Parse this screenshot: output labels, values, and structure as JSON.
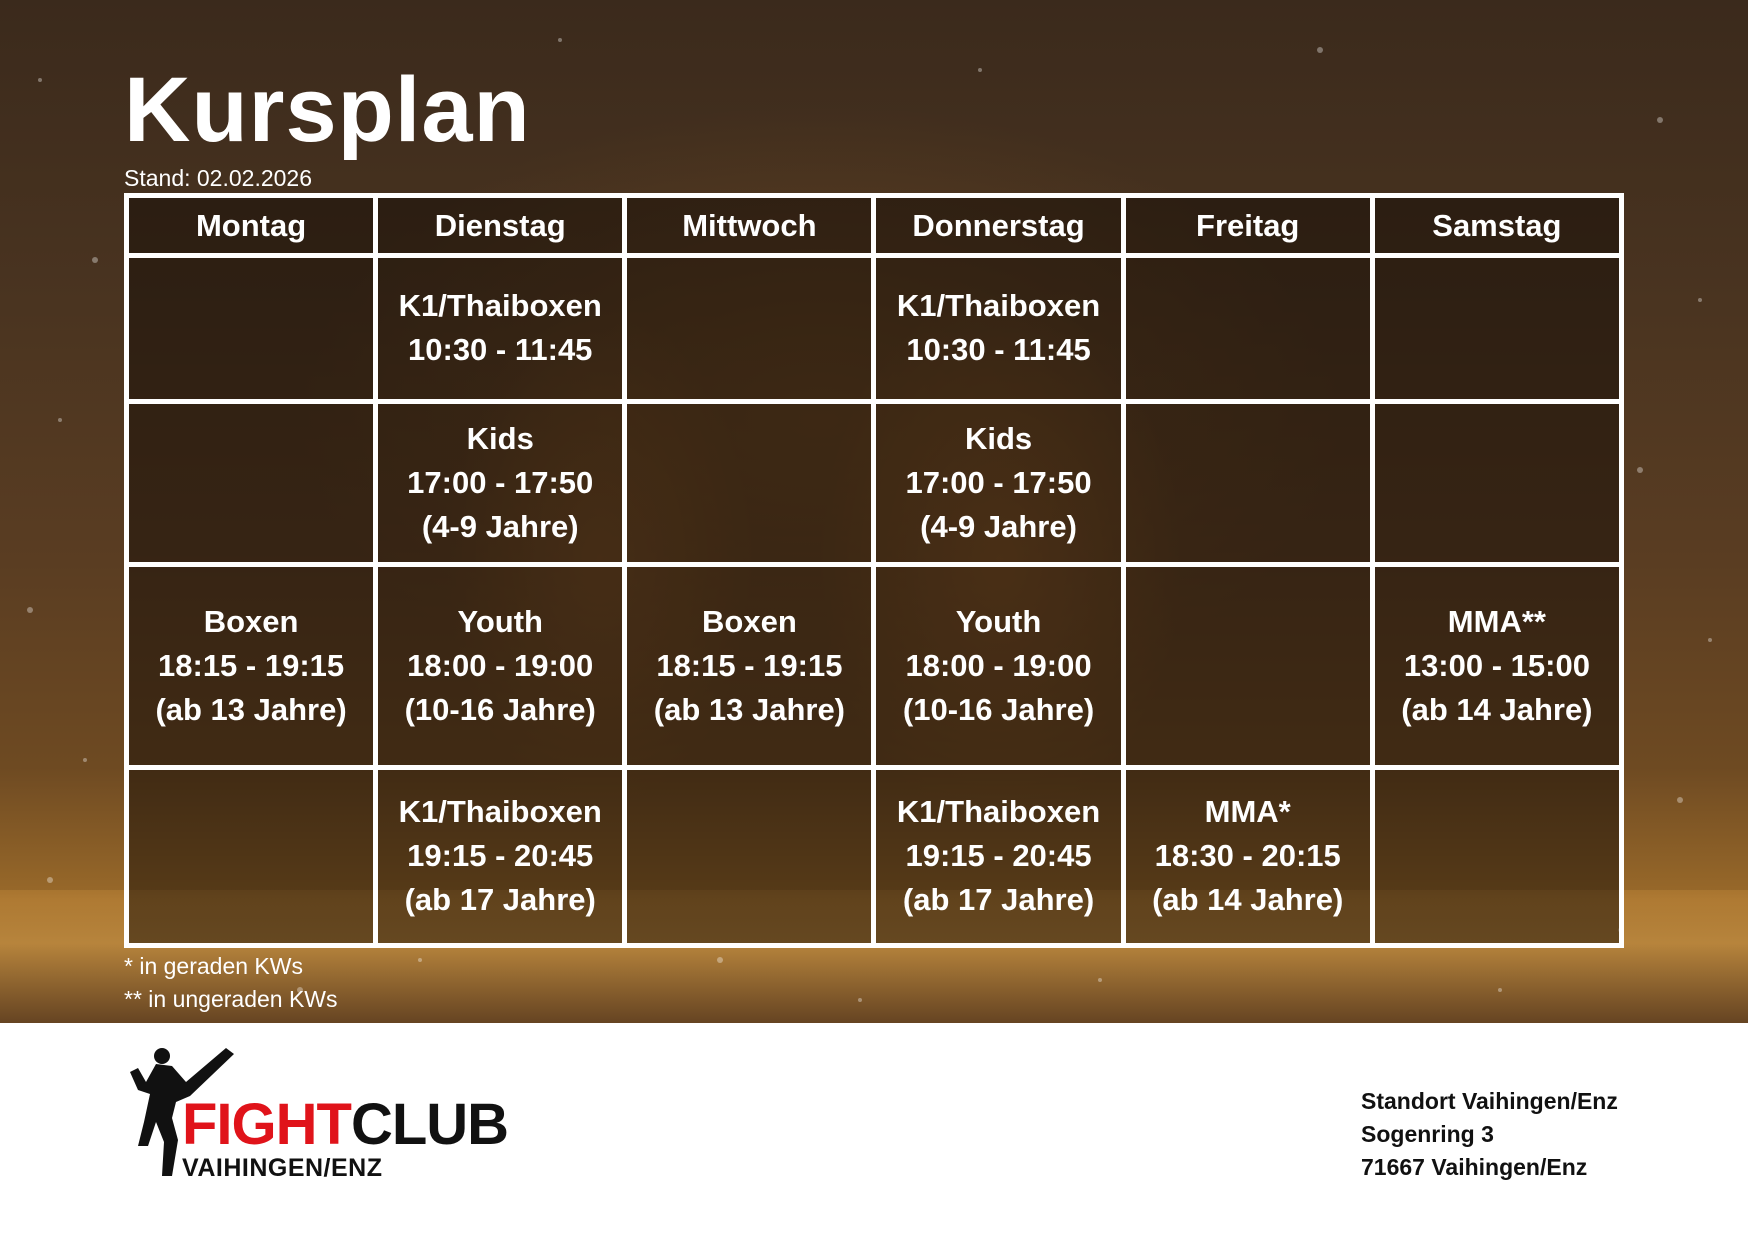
{
  "header": {
    "title": "Kursplan",
    "stand": "Stand: 02.02.2026"
  },
  "schedule": {
    "days": [
      "Montag",
      "Dienstag",
      "Mittwoch",
      "Donnerstag",
      "Freitag",
      "Samstag"
    ],
    "rows": [
      [
        {
          "name": "",
          "time": "",
          "age": ""
        },
        {
          "name": "K1/Thaiboxen",
          "time": "10:30 - 11:45",
          "age": ""
        },
        {
          "name": "",
          "time": "",
          "age": ""
        },
        {
          "name": "K1/Thaiboxen",
          "time": "10:30 - 11:45",
          "age": ""
        },
        {
          "name": "",
          "time": "",
          "age": ""
        },
        {
          "name": "",
          "time": "",
          "age": ""
        }
      ],
      [
        {
          "name": "",
          "time": "",
          "age": ""
        },
        {
          "name": "Kids",
          "time": "17:00 - 17:50",
          "age": "(4-9 Jahre)"
        },
        {
          "name": "",
          "time": "",
          "age": ""
        },
        {
          "name": "Kids",
          "time": "17:00 - 17:50",
          "age": "(4-9 Jahre)"
        },
        {
          "name": "",
          "time": "",
          "age": ""
        },
        {
          "name": "",
          "time": "",
          "age": ""
        }
      ],
      [
        {
          "name": "Boxen",
          "time": "18:15 - 19:15",
          "age": "(ab 13 Jahre)"
        },
        {
          "name": "Youth",
          "time": "18:00 - 19:00",
          "age": "(10-16 Jahre)"
        },
        {
          "name": "Boxen",
          "time": "18:15 - 19:15",
          "age": "(ab 13 Jahre)"
        },
        {
          "name": "Youth",
          "time": "18:00 - 19:00",
          "age": "(10-16 Jahre)"
        },
        {
          "name": "",
          "time": "",
          "age": ""
        },
        {
          "name": "MMA**",
          "time": "13:00 - 15:00",
          "age": "(ab 14 Jahre)"
        }
      ],
      [
        {
          "name": "",
          "time": "",
          "age": ""
        },
        {
          "name": "K1/Thaiboxen",
          "time": "19:15 - 20:45",
          "age": "(ab 17 Jahre)"
        },
        {
          "name": "",
          "time": "",
          "age": ""
        },
        {
          "name": "K1/Thaiboxen",
          "time": "19:15 - 20:45",
          "age": "(ab 17 Jahre)"
        },
        {
          "name": "MMA*",
          "time": "18:30 - 20:15",
          "age": "(ab 14 Jahre)"
        },
        {
          "name": "",
          "time": "",
          "age": ""
        }
      ]
    ]
  },
  "notes": {
    "even": "* in geraden KWs",
    "odd": "** in ungeraden KWs"
  },
  "logo": {
    "word_red": "FIGHT",
    "word_black": "CLUB",
    "subtitle": "VAIHINGEN/ENZ",
    "figure_icon": "kickboxer-silhouette-icon",
    "red": "#e0131a"
  },
  "address": {
    "line1": "Standort Vaihingen/Enz",
    "line2": "Sogenring 3",
    "line3": "71667 Vaihingen/Enz"
  }
}
